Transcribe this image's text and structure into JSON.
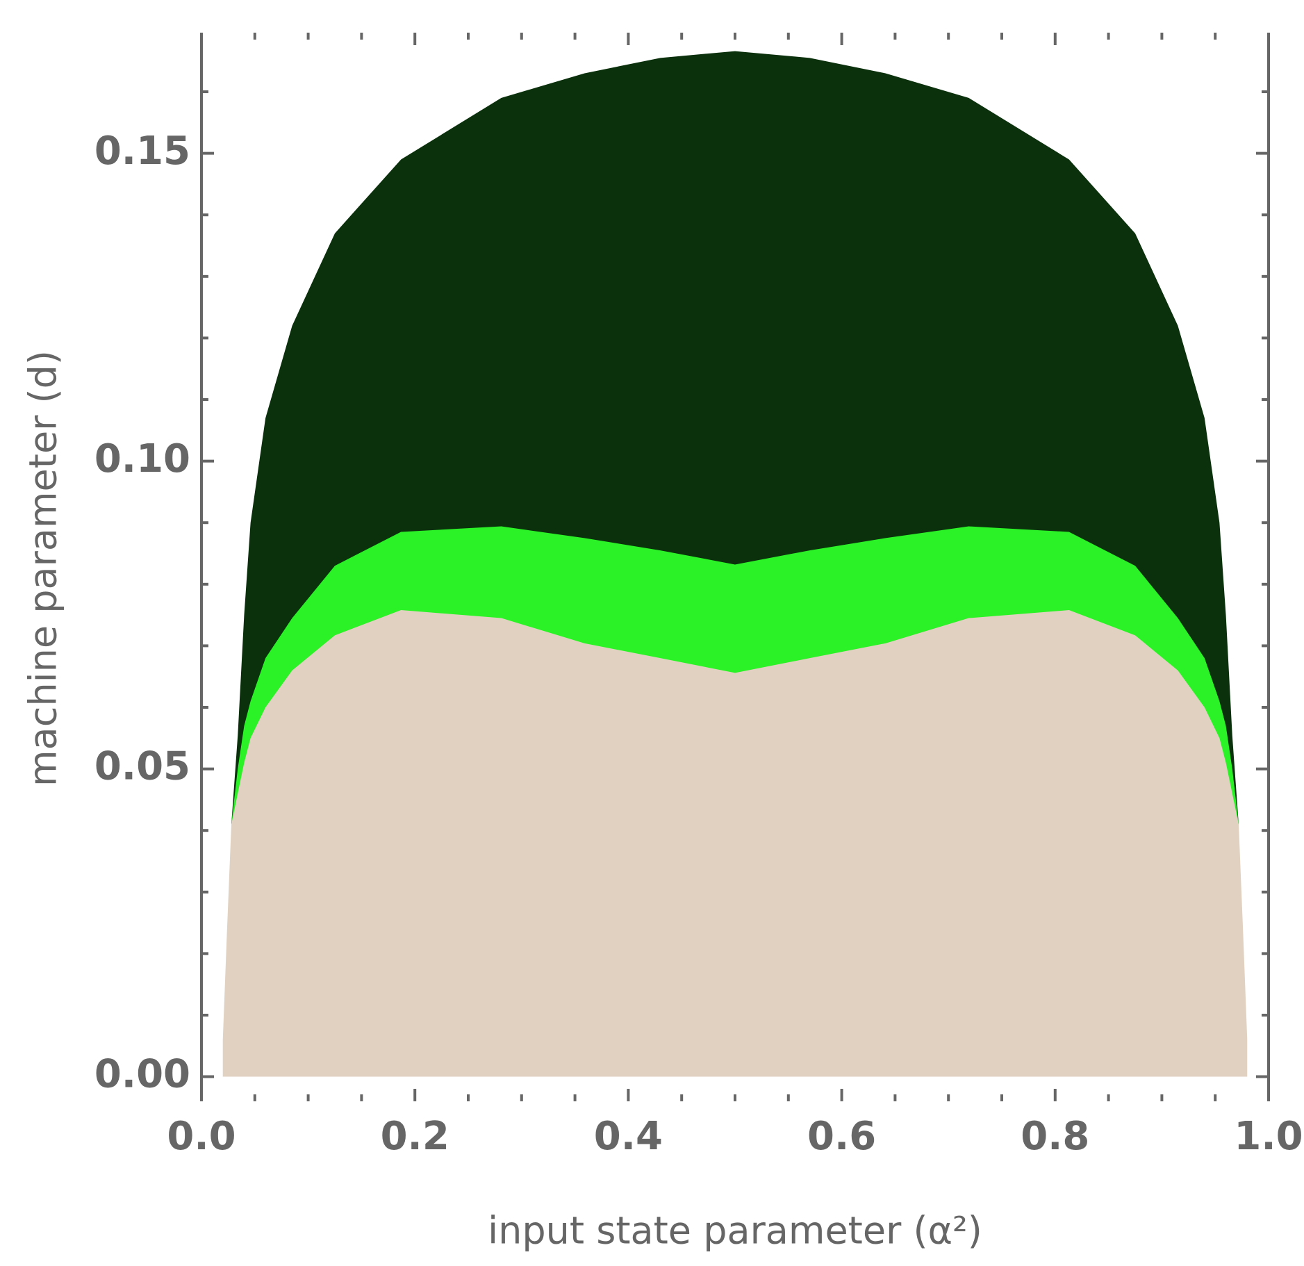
{
  "chart_data": {
    "type": "area",
    "x_label": "input state parameter (α²)",
    "y_label": "machine parameter (d)",
    "x": [
      0.02,
      0.024,
      0.028,
      0.034,
      0.04,
      0.046,
      0.06,
      0.085,
      0.125,
      0.187,
      0.281,
      0.359,
      0.43,
      0.5,
      0.57,
      0.641,
      0.719,
      0.813,
      0.875,
      0.915,
      0.94,
      0.954,
      0.96,
      0.966,
      0.972,
      0.976,
      0.98
    ],
    "series": [
      {
        "color": "#0a300c",
        "values": [
          null,
          null,
          0.041,
          0.0554,
          0.075,
          0.09,
          0.107,
          0.122,
          0.137,
          0.149,
          0.159,
          0.163,
          0.1655,
          0.1666,
          0.1655,
          0.163,
          0.159,
          0.149,
          0.137,
          0.122,
          0.107,
          0.09,
          0.075,
          0.0554,
          0.041,
          null,
          null
        ]
      },
      {
        "color": "#2af226",
        "values": [
          null,
          null,
          0.041,
          0.05,
          0.057,
          0.061,
          0.068,
          0.0745,
          0.083,
          0.0885,
          0.0894,
          0.0875,
          0.0855,
          0.0832,
          0.0855,
          0.0875,
          0.0894,
          0.0885,
          0.083,
          0.0745,
          0.068,
          0.061,
          0.057,
          0.05,
          0.041,
          null,
          null
        ]
      },
      {
        "color": "#e0d1c1",
        "values": [
          0.006,
          0.024,
          0.041,
          0.046,
          0.051,
          0.055,
          0.06,
          0.066,
          0.0717,
          0.0758,
          0.0745,
          0.0704,
          0.068,
          0.0656,
          0.068,
          0.0704,
          0.0745,
          0.0758,
          0.0717,
          0.066,
          0.06,
          0.055,
          0.051,
          0.046,
          0.041,
          0.024,
          0.006
        ]
      }
    ],
    "xlim": [
      0,
      1
    ],
    "ylim": [
      -0.004,
      0.1696
    ],
    "xticks": [
      {
        "value": 0,
        "label": "0.0"
      },
      0.2,
      0.4,
      0.6,
      0.8,
      {
        "value": 1,
        "label": "1.0"
      }
    ],
    "yticks": [
      {
        "value": 0,
        "label": "0.00"
      },
      {
        "value": 0.05,
        "label": "0.05"
      },
      {
        "value": 0.1,
        "label": "0.10"
      },
      {
        "value": 0.15,
        "label": "0.15"
      }
    ]
  }
}
